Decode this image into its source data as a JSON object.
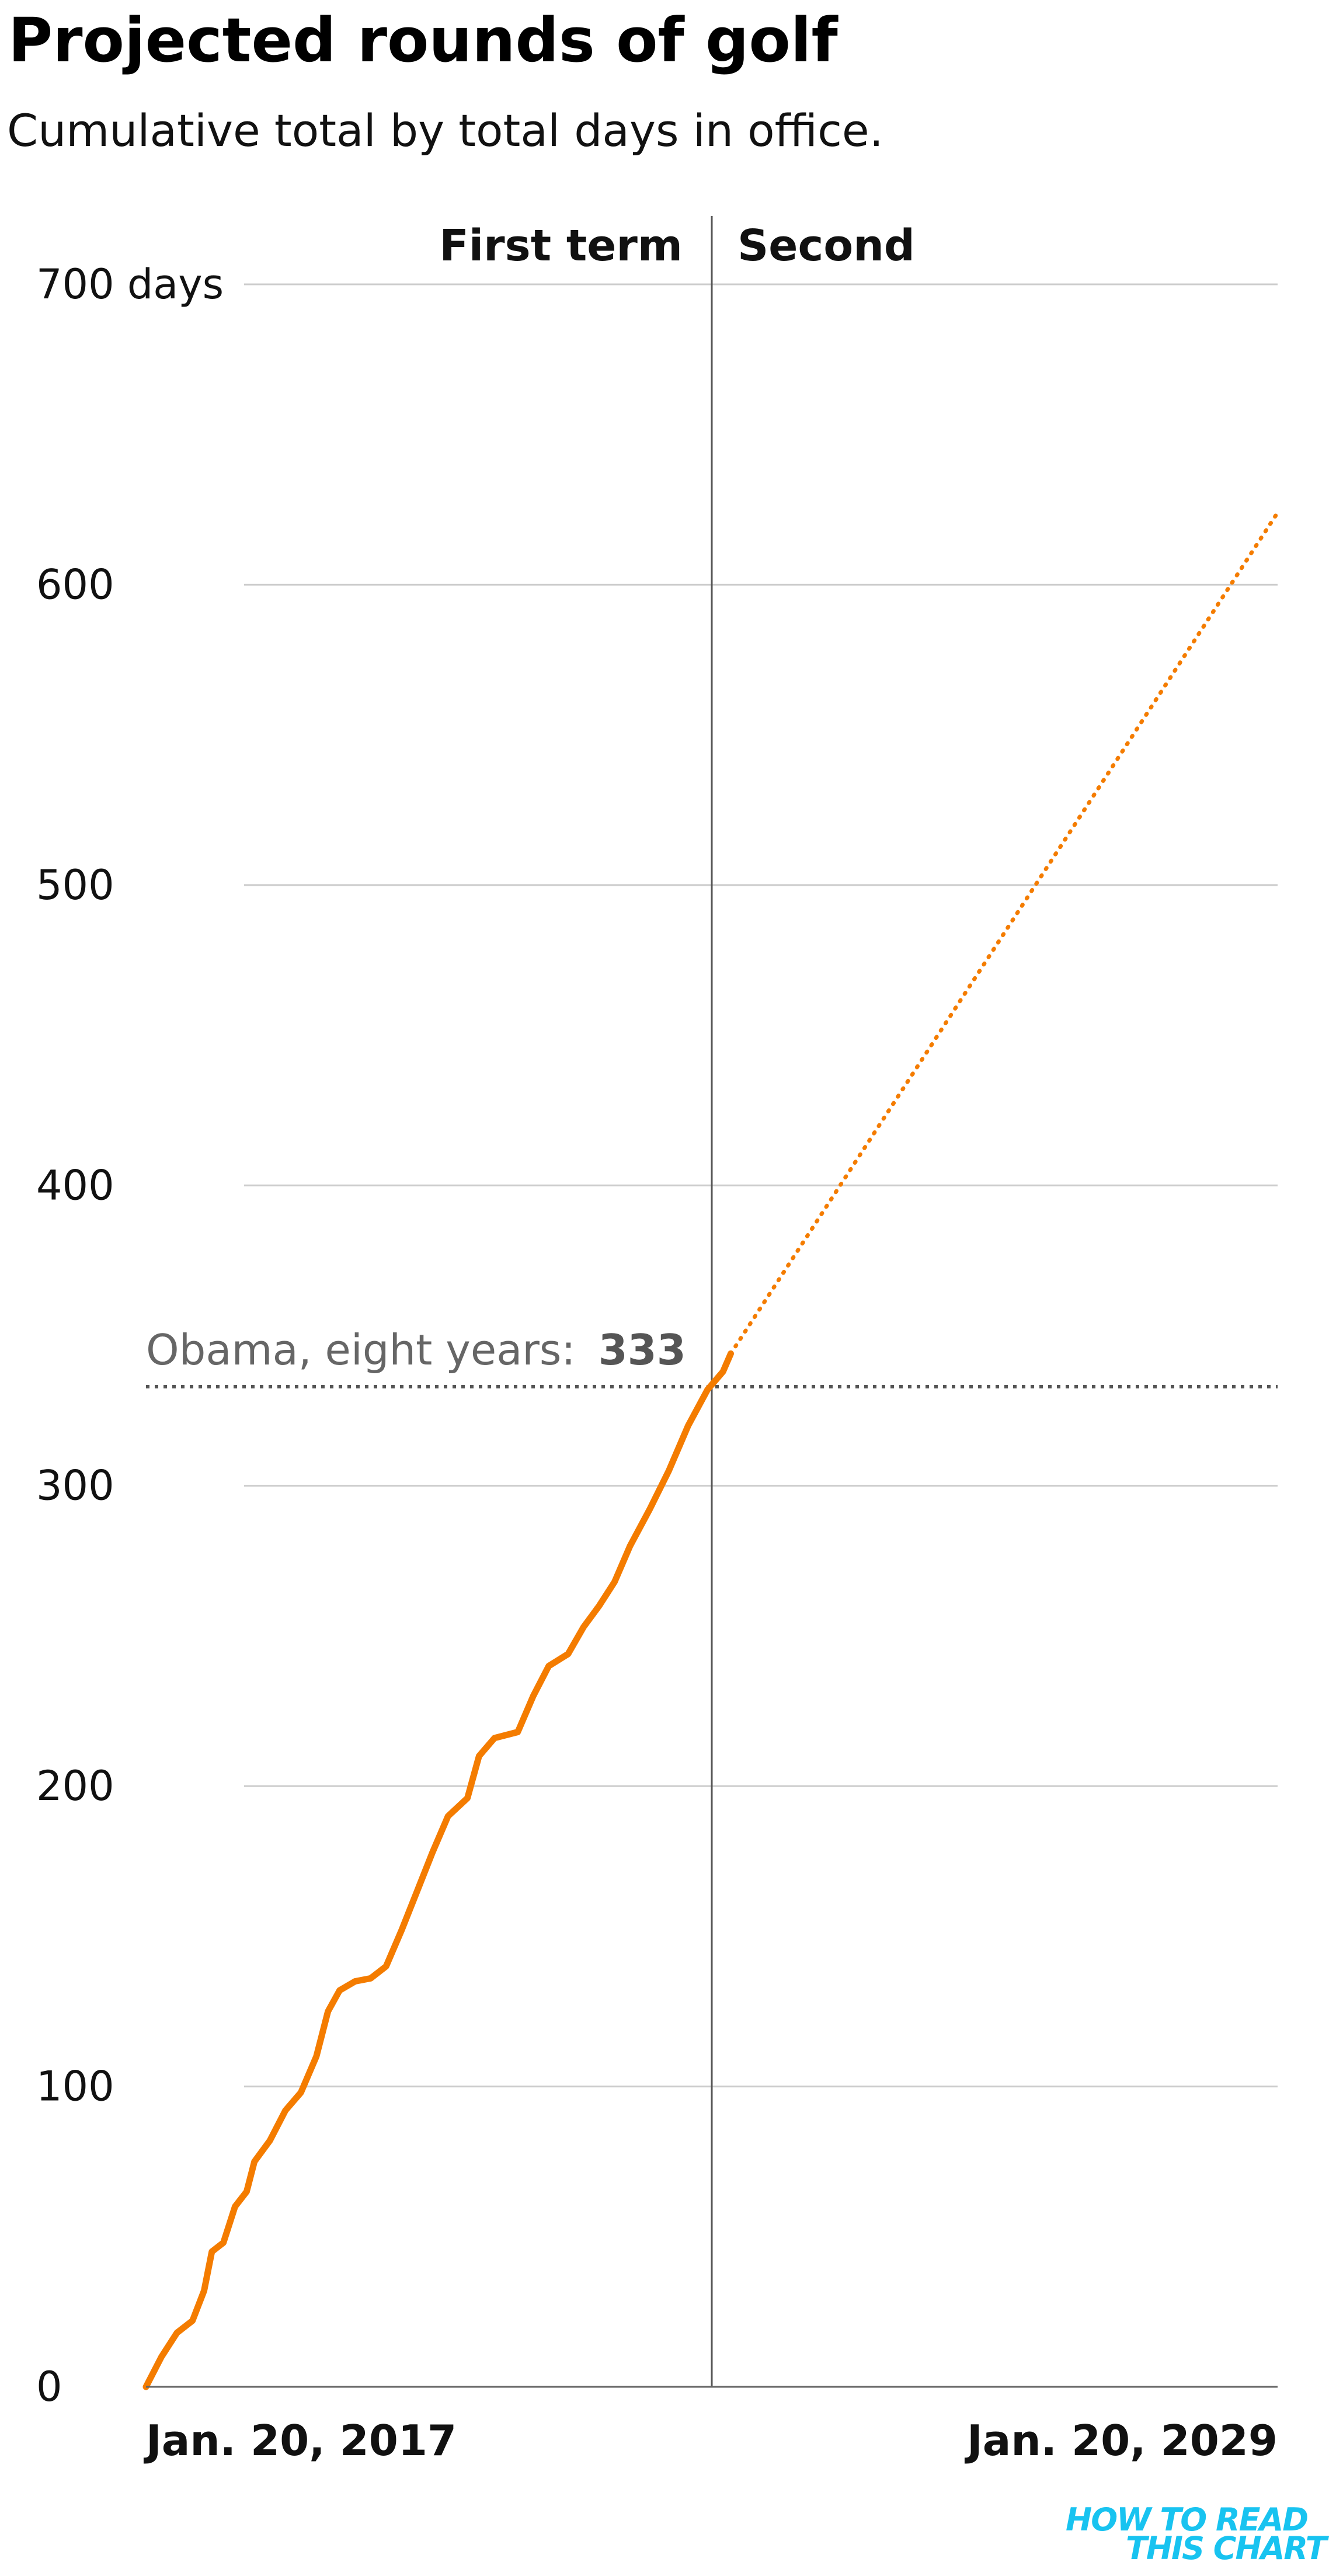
{
  "header": {
    "title": "Projected rounds of golf",
    "subtitle": "Cumulative total by total days in office."
  },
  "logo": {
    "line1": "HOW TO READ",
    "line2": "THIS CHART"
  },
  "chart_data": {
    "type": "line",
    "title": "Projected rounds of golf",
    "subtitle": "Cumulative total by total days in office.",
    "xlabel": "",
    "ylabel": "",
    "x_range_days_in_office": [
      0,
      2922
    ],
    "ylim": [
      0,
      700
    ],
    "y_ticks": [
      0,
      100,
      200,
      300,
      400,
      500,
      600,
      700
    ],
    "y_tick_labels": [
      "0",
      "100",
      "200",
      "300",
      "400",
      "500",
      "600",
      "700 days"
    ],
    "x_tick_labels": [
      {
        "x": 0,
        "label": "Jan. 20, 2017"
      },
      {
        "x": 2922,
        "label": "Jan. 20, 2029"
      }
    ],
    "grid": true,
    "term_divider": {
      "x": 1461,
      "left_label": "First term",
      "right_label": "Second"
    },
    "reference_line": {
      "y": 333,
      "label": "Obama, eight years:",
      "value_label": "333"
    },
    "series": [
      {
        "style": "solid",
        "color": "#f47c00",
        "points": [
          [
            0,
            0
          ],
          [
            40,
            10
          ],
          [
            80,
            18
          ],
          [
            120,
            22
          ],
          [
            150,
            32
          ],
          [
            170,
            45
          ],
          [
            200,
            48
          ],
          [
            230,
            60
          ],
          [
            260,
            65
          ],
          [
            280,
            75
          ],
          [
            320,
            82
          ],
          [
            360,
            92
          ],
          [
            400,
            98
          ],
          [
            440,
            110
          ],
          [
            470,
            125
          ],
          [
            500,
            132
          ],
          [
            540,
            135
          ],
          [
            580,
            136
          ],
          [
            620,
            140
          ],
          [
            660,
            152
          ],
          [
            700,
            165
          ],
          [
            740,
            178
          ],
          [
            780,
            190
          ],
          [
            830,
            196
          ],
          [
            860,
            210
          ],
          [
            900,
            216
          ],
          [
            960,
            218
          ],
          [
            1000,
            230
          ],
          [
            1040,
            240
          ],
          [
            1090,
            244
          ],
          [
            1130,
            253
          ],
          [
            1170,
            260
          ],
          [
            1210,
            268
          ],
          [
            1250,
            280
          ],
          [
            1300,
            292
          ],
          [
            1350,
            305
          ],
          [
            1400,
            320
          ],
          [
            1450,
            332
          ],
          [
            1490,
            338
          ],
          [
            1510,
            344
          ]
        ]
      },
      {
        "style": "dotted",
        "color": "#f47c00",
        "points": [
          [
            1510,
            344
          ],
          [
            2922,
            624
          ]
        ]
      }
    ]
  },
  "colors": {
    "line": "#f47c00",
    "grid": "#cccccc",
    "reference": "#555555",
    "logo": "#18c3f0"
  }
}
